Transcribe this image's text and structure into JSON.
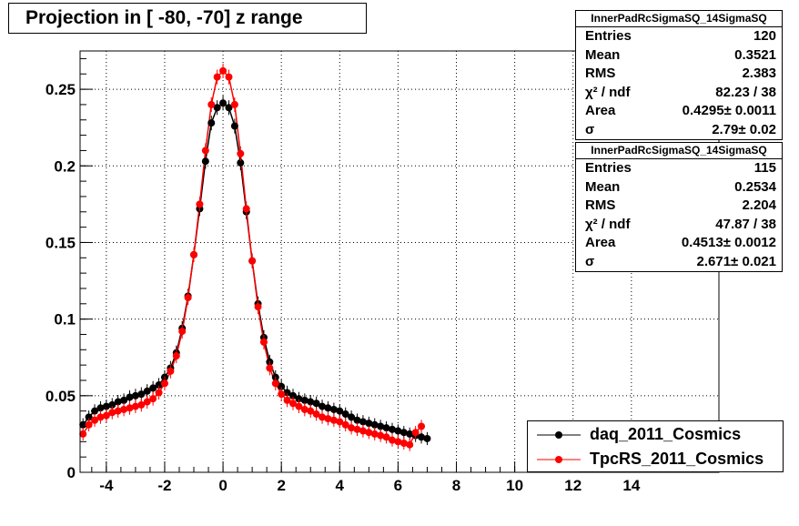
{
  "title": "Projection in [ -80, -70] z range",
  "stats": [
    {
      "name": "InnerPadRcSigmaSQ_14SigmaSQ",
      "rows": [
        {
          "label": "Entries",
          "value": "120"
        },
        {
          "label": "Mean",
          "value": "0.3521"
        },
        {
          "label": "RMS",
          "value": "2.383"
        },
        {
          "label": "χ² / ndf",
          "value": "82.23 / 38"
        },
        {
          "label": "Area",
          "value": "0.4295± 0.0011"
        },
        {
          "label": "σ",
          "value": "2.79± 0.02"
        }
      ]
    },
    {
      "name": "InnerPadRcSigmaSQ_14SigmaSQ",
      "rows": [
        {
          "label": "Entries",
          "value": "115"
        },
        {
          "label": "Mean",
          "value": "0.2534"
        },
        {
          "label": "RMS",
          "value": "2.204"
        },
        {
          "label": "χ² / ndf",
          "value": "47.87 / 38"
        },
        {
          "label": "Area",
          "value": "0.4513± 0.0012"
        },
        {
          "label": "σ",
          "value": "2.671± 0.021"
        }
      ]
    }
  ],
  "legend": [
    "daq_2011_Cosmics",
    "TpcRS_2011_Cosmics"
  ],
  "colors": {
    "daq": "#000000",
    "tpcrs": "#ff0000"
  },
  "chart_data": {
    "type": "scatter",
    "title": "Projection in [ -80, -70] z range",
    "xlim": [
      -4.9,
      17
    ],
    "ylim": [
      0,
      0.275
    ],
    "x_ticks": [
      "-4",
      "-2",
      "0",
      "2",
      "4",
      "6",
      "8",
      "10",
      "12",
      "14"
    ],
    "y_ticks": [
      "0",
      "0.05",
      "0.1",
      "0.15",
      "0.2",
      "0.25"
    ],
    "grid": true,
    "legend_position": "bottom-right",
    "series": [
      {
        "name": "daq_2011_Cosmics",
        "color": "#000000",
        "x": [
          -4.8,
          -4.6,
          -4.4,
          -4.2,
          -4.0,
          -3.8,
          -3.6,
          -3.4,
          -3.2,
          -3.0,
          -2.8,
          -2.6,
          -2.4,
          -2.2,
          -2.0,
          -1.8,
          -1.6,
          -1.4,
          -1.2,
          -1.0,
          -0.8,
          -0.6,
          -0.4,
          -0.2,
          0.0,
          0.2,
          0.4,
          0.6,
          0.8,
          1.0,
          1.2,
          1.4,
          1.6,
          1.8,
          2.0,
          2.2,
          2.4,
          2.6,
          2.8,
          3.0,
          3.2,
          3.4,
          3.6,
          3.8,
          4.0,
          4.2,
          4.4,
          4.6,
          4.8,
          5.0,
          5.2,
          5.4,
          5.6,
          5.8,
          6.0,
          6.2,
          6.4,
          6.6,
          6.8,
          7.0
        ],
        "y": [
          0.031,
          0.036,
          0.04,
          0.042,
          0.043,
          0.044,
          0.046,
          0.047,
          0.049,
          0.05,
          0.051,
          0.053,
          0.055,
          0.057,
          0.062,
          0.068,
          0.078,
          0.094,
          0.115,
          0.142,
          0.172,
          0.203,
          0.228,
          0.238,
          0.241,
          0.238,
          0.226,
          0.202,
          0.17,
          0.138,
          0.11,
          0.088,
          0.072,
          0.062,
          0.056,
          0.052,
          0.05,
          0.048,
          0.047,
          0.046,
          0.045,
          0.043,
          0.042,
          0.041,
          0.04,
          0.038,
          0.036,
          0.034,
          0.033,
          0.032,
          0.031,
          0.03,
          0.029,
          0.028,
          0.027,
          0.026,
          0.025,
          0.024,
          0.023,
          0.022
        ]
      },
      {
        "name": "TpcRS_2011_Cosmics",
        "color": "#ff0000",
        "x": [
          -4.8,
          -4.6,
          -4.4,
          -4.2,
          -4.0,
          -3.8,
          -3.6,
          -3.4,
          -3.2,
          -3.0,
          -2.8,
          -2.6,
          -2.4,
          -2.2,
          -2.0,
          -1.8,
          -1.6,
          -1.4,
          -1.2,
          -1.0,
          -0.8,
          -0.6,
          -0.4,
          -0.2,
          0.0,
          0.2,
          0.4,
          0.6,
          0.8,
          1.0,
          1.2,
          1.4,
          1.6,
          1.8,
          2.0,
          2.2,
          2.4,
          2.6,
          2.8,
          3.0,
          3.2,
          3.4,
          3.6,
          3.8,
          4.0,
          4.2,
          4.4,
          4.6,
          4.8,
          5.0,
          5.2,
          5.4,
          5.6,
          5.8,
          6.0,
          6.2,
          6.4,
          6.6,
          6.8
        ],
        "y": [
          0.025,
          0.031,
          0.034,
          0.036,
          0.037,
          0.039,
          0.04,
          0.041,
          0.042,
          0.043,
          0.044,
          0.046,
          0.048,
          0.052,
          0.058,
          0.066,
          0.076,
          0.092,
          0.114,
          0.142,
          0.175,
          0.21,
          0.24,
          0.258,
          0.262,
          0.258,
          0.24,
          0.208,
          0.172,
          0.138,
          0.108,
          0.085,
          0.068,
          0.058,
          0.051,
          0.047,
          0.045,
          0.043,
          0.041,
          0.04,
          0.038,
          0.036,
          0.035,
          0.034,
          0.033,
          0.031,
          0.029,
          0.028,
          0.027,
          0.026,
          0.025,
          0.024,
          0.023,
          0.021,
          0.02,
          0.019,
          0.018,
          0.026,
          0.03
        ]
      }
    ]
  }
}
